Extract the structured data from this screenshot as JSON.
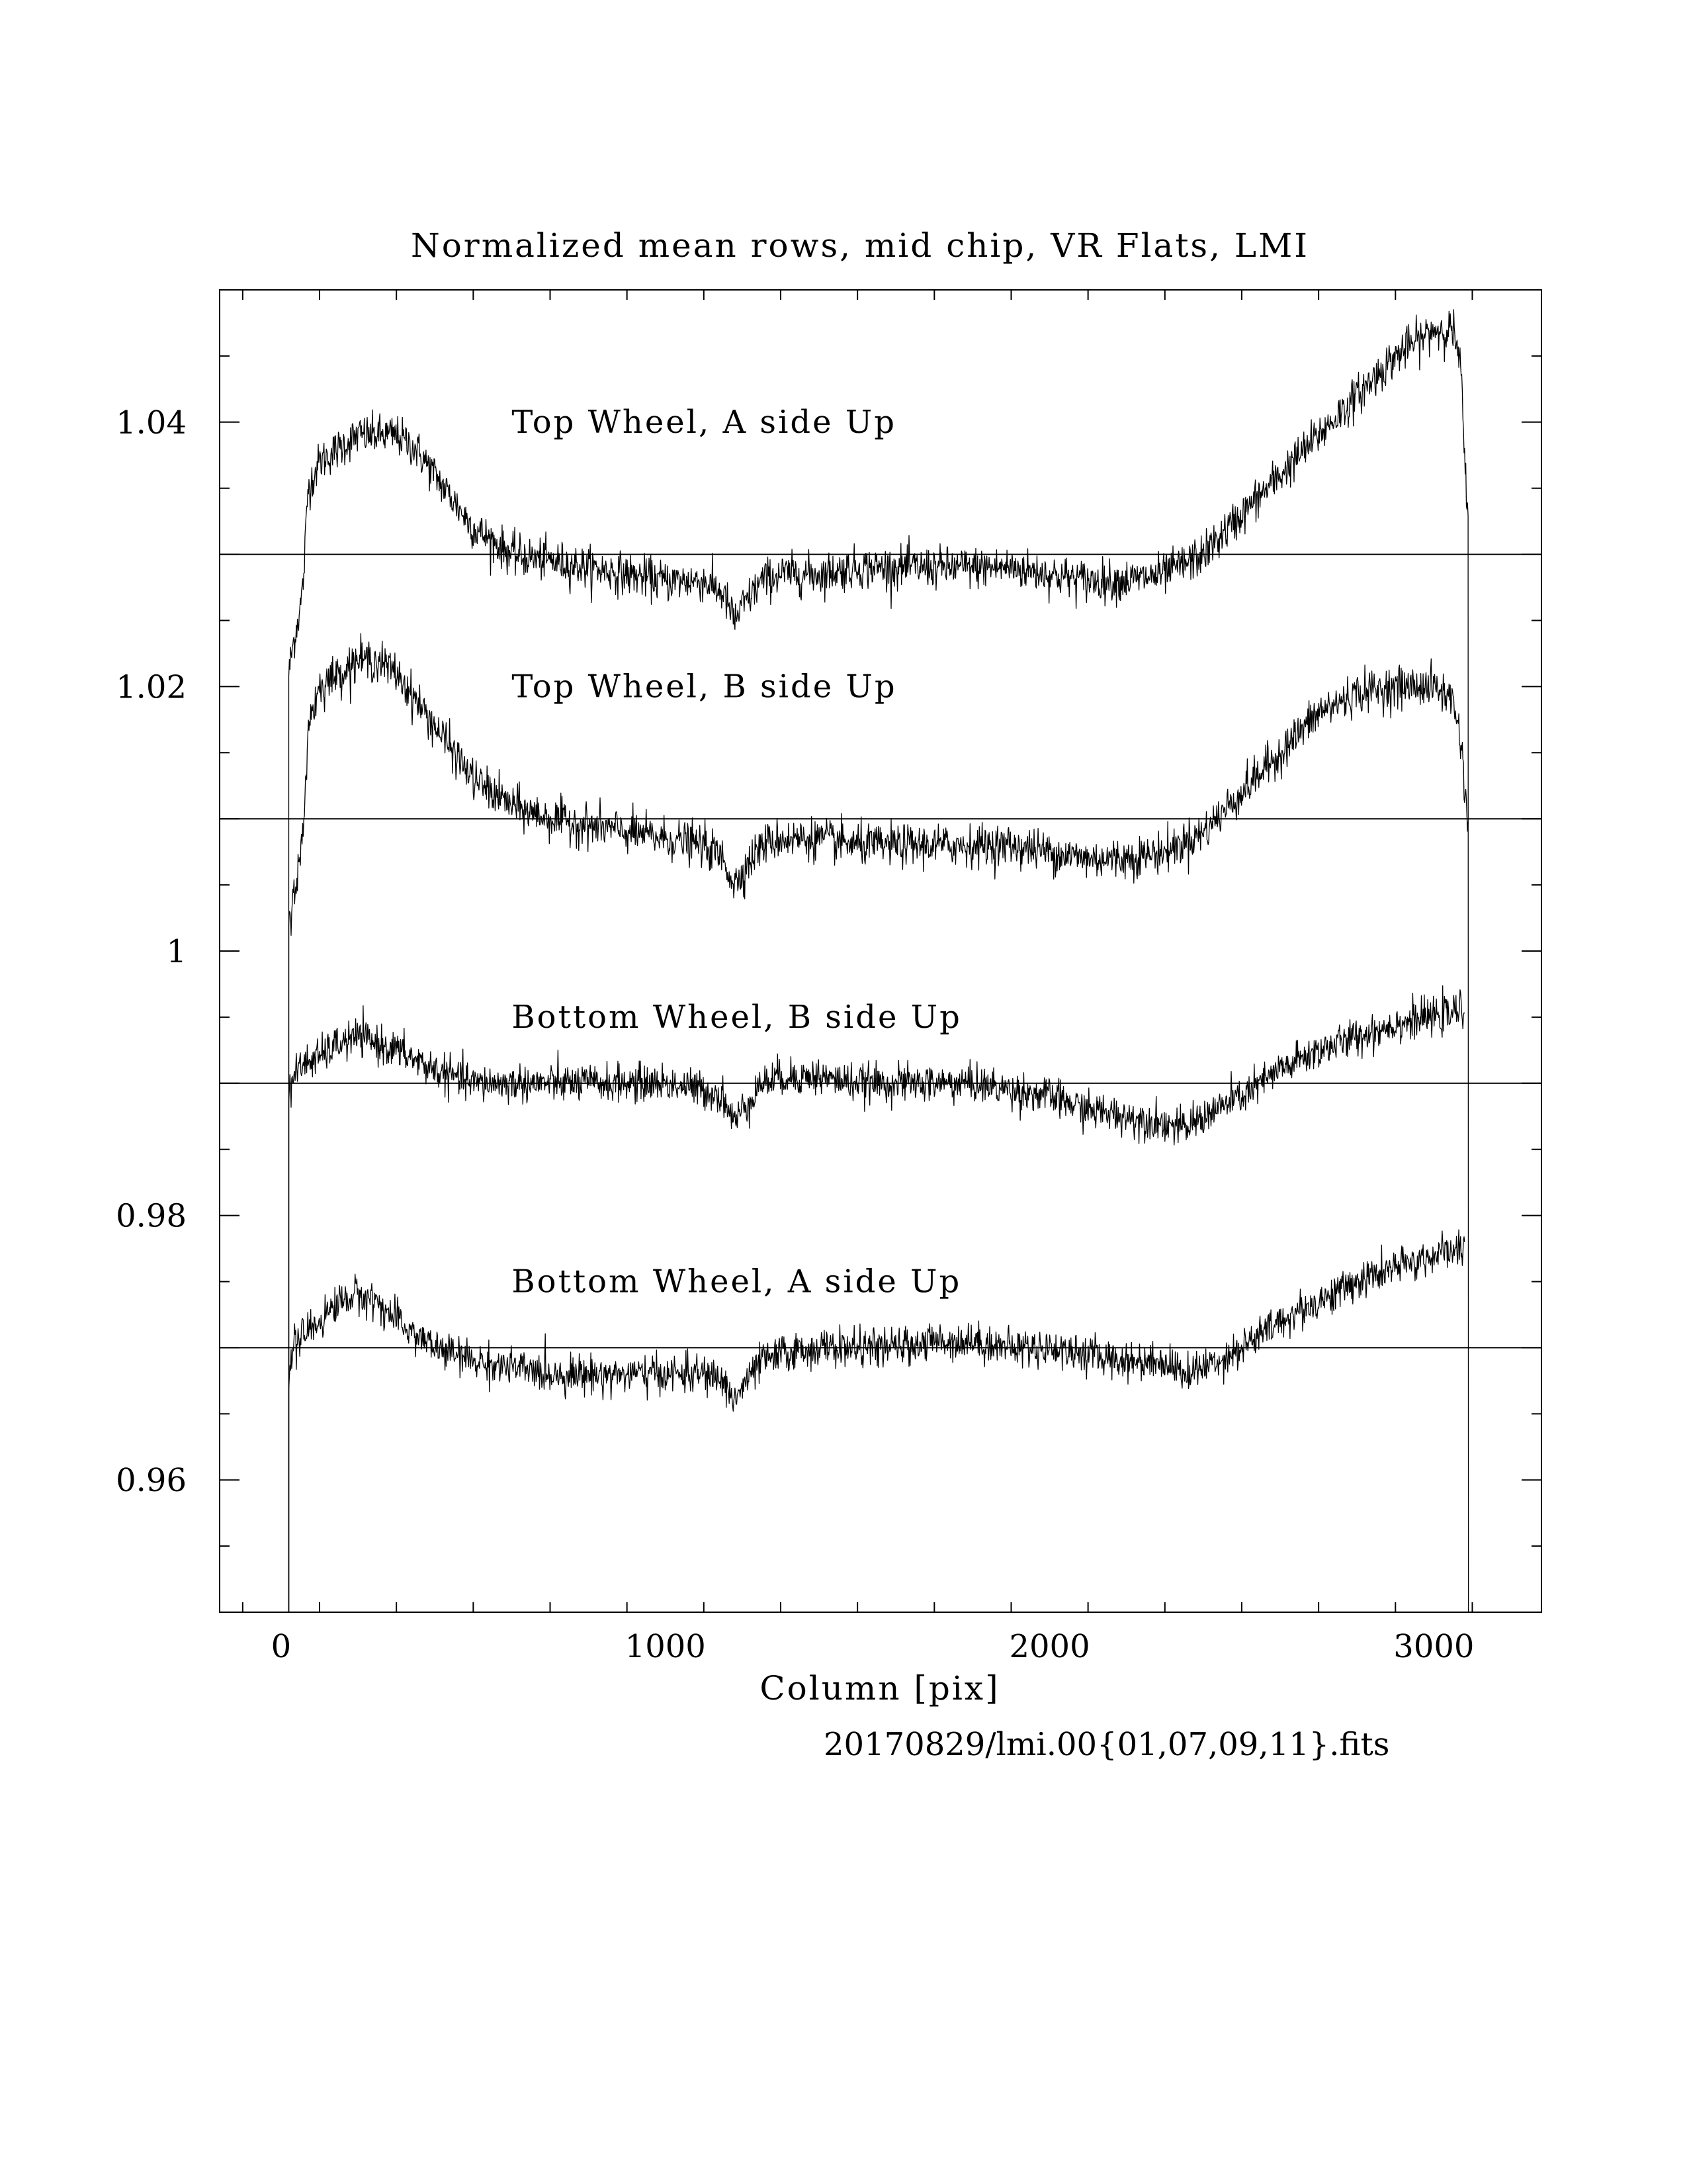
{
  "chart_data": {
    "type": "line",
    "title": "Normalized mean rows, mid chip, VR Flats, LMI",
    "xlabel": "Column [pix]",
    "ylabel": "",
    "footnote": "20170829/lmi.00{01,07,09,11}.fits",
    "xlim": [
      -160,
      3280
    ],
    "ylim": [
      0.95,
      1.05
    ],
    "x_ticks": [
      {
        "value": 0,
        "label": "0"
      },
      {
        "value": 1000,
        "label": "1000"
      },
      {
        "value": 2000,
        "label": "2000"
      },
      {
        "value": 3000,
        "label": "3000"
      }
    ],
    "y_ticks": [
      {
        "value": 0.96,
        "label": "0.96"
      },
      {
        "value": 0.98,
        "label": "0.98"
      },
      {
        "value": 1.0,
        "label": "1"
      },
      {
        "value": 1.02,
        "label": "1.02"
      },
      {
        "value": 1.04,
        "label": "1.04"
      }
    ],
    "reference_lines": [
      1.03,
      1.01,
      0.99,
      0.97
    ],
    "series": [
      {
        "name": "Top Wheel, A side Up",
        "label_x": 600,
        "label_y": 1.04,
        "noise": 0.0011,
        "x": [
          20,
          30,
          50,
          58,
          70,
          100,
          150,
          200,
          250,
          300,
          350,
          400,
          450,
          500,
          550,
          600,
          700,
          800,
          900,
          1000,
          1100,
          1150,
          1180,
          1200,
          1250,
          1300,
          1400,
          1500,
          1600,
          1700,
          1800,
          1900,
          2000,
          2100,
          2200,
          2300,
          2400,
          2500,
          2600,
          2700,
          2800,
          2900,
          3000,
          3050,
          3070,
          3090
        ],
        "y": [
          1.021,
          1.023,
          1.026,
          1.028,
          1.035,
          1.037,
          1.038,
          1.039,
          1.039,
          1.039,
          1.038,
          1.036,
          1.034,
          1.032,
          1.031,
          1.03,
          1.0295,
          1.029,
          1.0285,
          1.028,
          1.028,
          1.027,
          1.025,
          1.026,
          1.028,
          1.0285,
          1.0285,
          1.029,
          1.029,
          1.029,
          1.029,
          1.029,
          1.0285,
          1.028,
          1.028,
          1.0285,
          1.03,
          1.033,
          1.036,
          1.039,
          1.042,
          1.045,
          1.047,
          1.047,
          1.044,
          1.031
        ]
      },
      {
        "name": "Top Wheel, B side Up",
        "label_x": 600,
        "label_y": 1.02,
        "noise": 0.0011,
        "x": [
          20,
          30,
          50,
          58,
          70,
          100,
          150,
          200,
          250,
          300,
          350,
          400,
          450,
          500,
          550,
          600,
          700,
          800,
          900,
          1000,
          1100,
          1150,
          1180,
          1200,
          1250,
          1300,
          1400,
          1500,
          1600,
          1700,
          1800,
          1900,
          2000,
          2100,
          2200,
          2300,
          2400,
          2500,
          2600,
          2700,
          2800,
          2900,
          3000,
          3050,
          3070,
          3090
        ],
        "y": [
          1.002,
          1.004,
          1.007,
          1.009,
          1.017,
          1.02,
          1.021,
          1.022,
          1.022,
          1.021,
          1.019,
          1.017,
          1.015,
          1.013,
          1.012,
          1.011,
          1.01,
          1.0095,
          1.009,
          1.0085,
          1.008,
          1.007,
          1.005,
          1.006,
          1.008,
          1.0085,
          1.0085,
          1.008,
          1.008,
          1.008,
          1.008,
          1.008,
          1.0075,
          1.007,
          1.007,
          1.0075,
          1.009,
          1.012,
          1.015,
          1.018,
          1.0195,
          1.02,
          1.02,
          1.019,
          1.016,
          1.009
        ]
      },
      {
        "name": "Bottom Wheel, B side Up",
        "label_x": 600,
        "label_y": 0.995,
        "noise": 0.001,
        "x": [
          20,
          30,
          60,
          100,
          150,
          200,
          250,
          300,
          400,
          500,
          600,
          700,
          800,
          900,
          1000,
          1100,
          1150,
          1180,
          1200,
          1250,
          1300,
          1400,
          1500,
          1600,
          1700,
          1800,
          1900,
          2000,
          2100,
          2200,
          2300,
          2350,
          2400,
          2500,
          2600,
          2700,
          2800,
          2900,
          3000,
          3080
        ],
        "y": [
          0.989,
          0.9905,
          0.9915,
          0.992,
          0.993,
          0.9935,
          0.993,
          0.9925,
          0.991,
          0.99,
          0.99,
          0.99,
          0.99,
          0.99,
          0.99,
          0.9895,
          0.989,
          0.987,
          0.988,
          0.99,
          0.9905,
          0.9905,
          0.99,
          0.99,
          0.99,
          0.99,
          0.9895,
          0.989,
          0.988,
          0.9875,
          0.987,
          0.9865,
          0.9875,
          0.989,
          0.991,
          0.9925,
          0.9935,
          0.9945,
          0.995,
          0.9955
        ]
      },
      {
        "name": "Bottom Wheel, A side Up",
        "label_x": 600,
        "label_y": 0.975,
        "noise": 0.001,
        "x": [
          20,
          30,
          60,
          100,
          150,
          200,
          250,
          300,
          400,
          500,
          600,
          700,
          800,
          900,
          1000,
          1100,
          1150,
          1180,
          1200,
          1250,
          1300,
          1400,
          1500,
          1600,
          1700,
          1800,
          1900,
          2000,
          2100,
          2200,
          2300,
          2350,
          2400,
          2500,
          2600,
          2700,
          2800,
          2900,
          3000,
          3080
        ],
        "y": [
          0.968,
          0.97,
          0.971,
          0.972,
          0.9735,
          0.974,
          0.9735,
          0.972,
          0.97,
          0.969,
          0.9685,
          0.968,
          0.968,
          0.968,
          0.968,
          0.968,
          0.9675,
          0.966,
          0.967,
          0.969,
          0.9695,
          0.97,
          0.97,
          0.97,
          0.9705,
          0.9705,
          0.97,
          0.97,
          0.9695,
          0.969,
          0.969,
          0.968,
          0.9685,
          0.97,
          0.972,
          0.9735,
          0.975,
          0.976,
          0.977,
          0.9775
        ]
      }
    ]
  }
}
